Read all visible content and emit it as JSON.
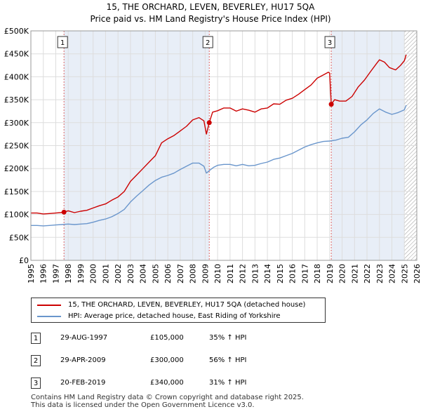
{
  "colors": {
    "property_line": "#cc0000",
    "hpi_line": "#6a96cc",
    "shade": "#e8eef7",
    "marker_line": "#dd6666",
    "grid": "#dddddd"
  },
  "chart_data": {
    "type": "line",
    "title": "15, THE ORCHARD, LEVEN, BEVERLEY, HU17 5QA",
    "subtitle": "Price paid vs. HM Land Registry's House Price Index (HPI)",
    "xlabel": "",
    "ylabel": "",
    "xlim": [
      1995,
      2026
    ],
    "ylim": [
      0,
      500000
    ],
    "x_ticks": [
      "1995",
      "1996",
      "1997",
      "1998",
      "1999",
      "2000",
      "2001",
      "2002",
      "2003",
      "2004",
      "2005",
      "2006",
      "2007",
      "2008",
      "2009",
      "2010",
      "2011",
      "2012",
      "2013",
      "2014",
      "2015",
      "2016",
      "2017",
      "2018",
      "2019",
      "2020",
      "2021",
      "2022",
      "2023",
      "2024",
      "2025",
      "2026"
    ],
    "y_ticks": [
      {
        "value": 0,
        "label": "£0"
      },
      {
        "value": 50000,
        "label": "£50K"
      },
      {
        "value": 100000,
        "label": "£100K"
      },
      {
        "value": 150000,
        "label": "£150K"
      },
      {
        "value": 200000,
        "label": "£200K"
      },
      {
        "value": 250000,
        "label": "£250K"
      },
      {
        "value": 300000,
        "label": "£300K"
      },
      {
        "value": 350000,
        "label": "£350K"
      },
      {
        "value": 400000,
        "label": "£400K"
      },
      {
        "value": 450000,
        "label": "£450K"
      },
      {
        "value": 500000,
        "label": "£500K"
      }
    ],
    "grid": true,
    "hatched_from": 2025.0,
    "series": [
      {
        "name": "15, THE ORCHARD, LEVEN, BEVERLEY, HU17 5QA (detached house)",
        "x": [
          1995.0,
          1995.5,
          1996.0,
          1996.5,
          1997.0,
          1997.4,
          1997.66,
          1998.0,
          1998.5,
          1999.0,
          1999.5,
          2000.0,
          2000.5,
          2001.0,
          2001.5,
          2002.0,
          2002.5,
          2003.0,
          2003.5,
          2004.0,
          2004.5,
          2005.0,
          2005.5,
          2006.0,
          2006.5,
          2007.0,
          2007.5,
          2008.0,
          2008.5,
          2008.9,
          2009.1,
          2009.33,
          2009.6,
          2010.0,
          2010.5,
          2011.0,
          2011.5,
          2012.0,
          2012.5,
          2013.0,
          2013.5,
          2014.0,
          2014.5,
          2015.0,
          2015.5,
          2016.0,
          2016.5,
          2017.0,
          2017.5,
          2018.0,
          2018.5,
          2018.9,
          2019.0,
          2019.13,
          2019.4,
          2019.8,
          2020.3,
          2020.8,
          2021.3,
          2021.8,
          2022.3,
          2022.8,
          2023.0,
          2023.4,
          2023.8,
          2024.3,
          2024.7,
          2025.0,
          2025.15
        ],
        "y": [
          103000,
          103000,
          101000,
          102000,
          103000,
          104000,
          105000,
          108000,
          104000,
          107000,
          109000,
          114000,
          119000,
          123000,
          131000,
          138000,
          150000,
          172000,
          186000,
          200000,
          214000,
          228000,
          256000,
          265000,
          272000,
          282000,
          292000,
          306000,
          311000,
          304000,
          275000,
          300000,
          323000,
          326000,
          332000,
          332000,
          325000,
          330000,
          327000,
          323000,
          330000,
          332000,
          341000,
          340000,
          349000,
          353000,
          362000,
          372000,
          382000,
          397000,
          404000,
          410000,
          408000,
          340000,
          350000,
          347000,
          347000,
          357000,
          378000,
          393000,
          412000,
          430000,
          437000,
          432000,
          420000,
          415000,
          425000,
          435000,
          448000
        ]
      },
      {
        "name": "HPI: Average price, detached house, East Riding of Yorkshire",
        "x": [
          1995.0,
          1995.5,
          1996.0,
          1996.5,
          1997.0,
          1997.5,
          1998.0,
          1998.5,
          1999.0,
          1999.5,
          2000.0,
          2000.5,
          2001.0,
          2001.5,
          2002.0,
          2002.5,
          2003.0,
          2003.5,
          2004.0,
          2004.5,
          2005.0,
          2005.5,
          2006.0,
          2006.5,
          2007.0,
          2007.5,
          2008.0,
          2008.5,
          2008.9,
          2009.1,
          2009.4,
          2009.7,
          2010.0,
          2010.5,
          2011.0,
          2011.5,
          2012.0,
          2012.5,
          2013.0,
          2013.5,
          2014.0,
          2014.5,
          2015.0,
          2015.5,
          2016.0,
          2016.5,
          2017.0,
          2017.5,
          2018.0,
          2018.5,
          2019.0,
          2019.5,
          2020.0,
          2020.5,
          2021.0,
          2021.5,
          2022.0,
          2022.5,
          2023.0,
          2023.5,
          2024.0,
          2024.5,
          2025.0,
          2025.15
        ],
        "y": [
          76000,
          76000,
          75000,
          76000,
          77000,
          78000,
          79000,
          78000,
          79000,
          80000,
          83000,
          87000,
          90000,
          95000,
          102000,
          111000,
          127000,
          140000,
          152000,
          164000,
          174000,
          181000,
          185000,
          190000,
          198000,
          205000,
          212000,
          212000,
          205000,
          190000,
          197000,
          203000,
          207000,
          209000,
          209000,
          206000,
          209000,
          206000,
          207000,
          211000,
          214000,
          220000,
          223000,
          228000,
          233000,
          240000,
          247000,
          252000,
          256000,
          259000,
          260000,
          262000,
          266000,
          268000,
          280000,
          295000,
          306000,
          320000,
          330000,
          323000,
          318000,
          322000,
          328000,
          338000
        ]
      }
    ],
    "sales": [
      {
        "num": "1",
        "x": 1997.66,
        "y": 105000
      },
      {
        "num": "2",
        "x": 2009.33,
        "y": 300000
      },
      {
        "num": "3",
        "x": 2019.13,
        "y": 340000
      }
    ]
  },
  "legend": {
    "property": "15, THE ORCHARD, LEVEN, BEVERLEY, HU17 5QA (detached house)",
    "hpi": "HPI: Average price, detached house, East Riding of Yorkshire"
  },
  "sales_table": [
    {
      "num": "1",
      "date": "29-AUG-1997",
      "price": "£105,000",
      "hpi": "35% ↑ HPI"
    },
    {
      "num": "2",
      "date": "29-APR-2009",
      "price": "£300,000",
      "hpi": "56% ↑ HPI"
    },
    {
      "num": "3",
      "date": "20-FEB-2019",
      "price": "£340,000",
      "hpi": "31% ↑ HPI"
    }
  ],
  "footer": {
    "line1": "Contains HM Land Registry data © Crown copyright and database right 2025.",
    "line2": "This data is licensed under the Open Government Licence v3.0."
  }
}
